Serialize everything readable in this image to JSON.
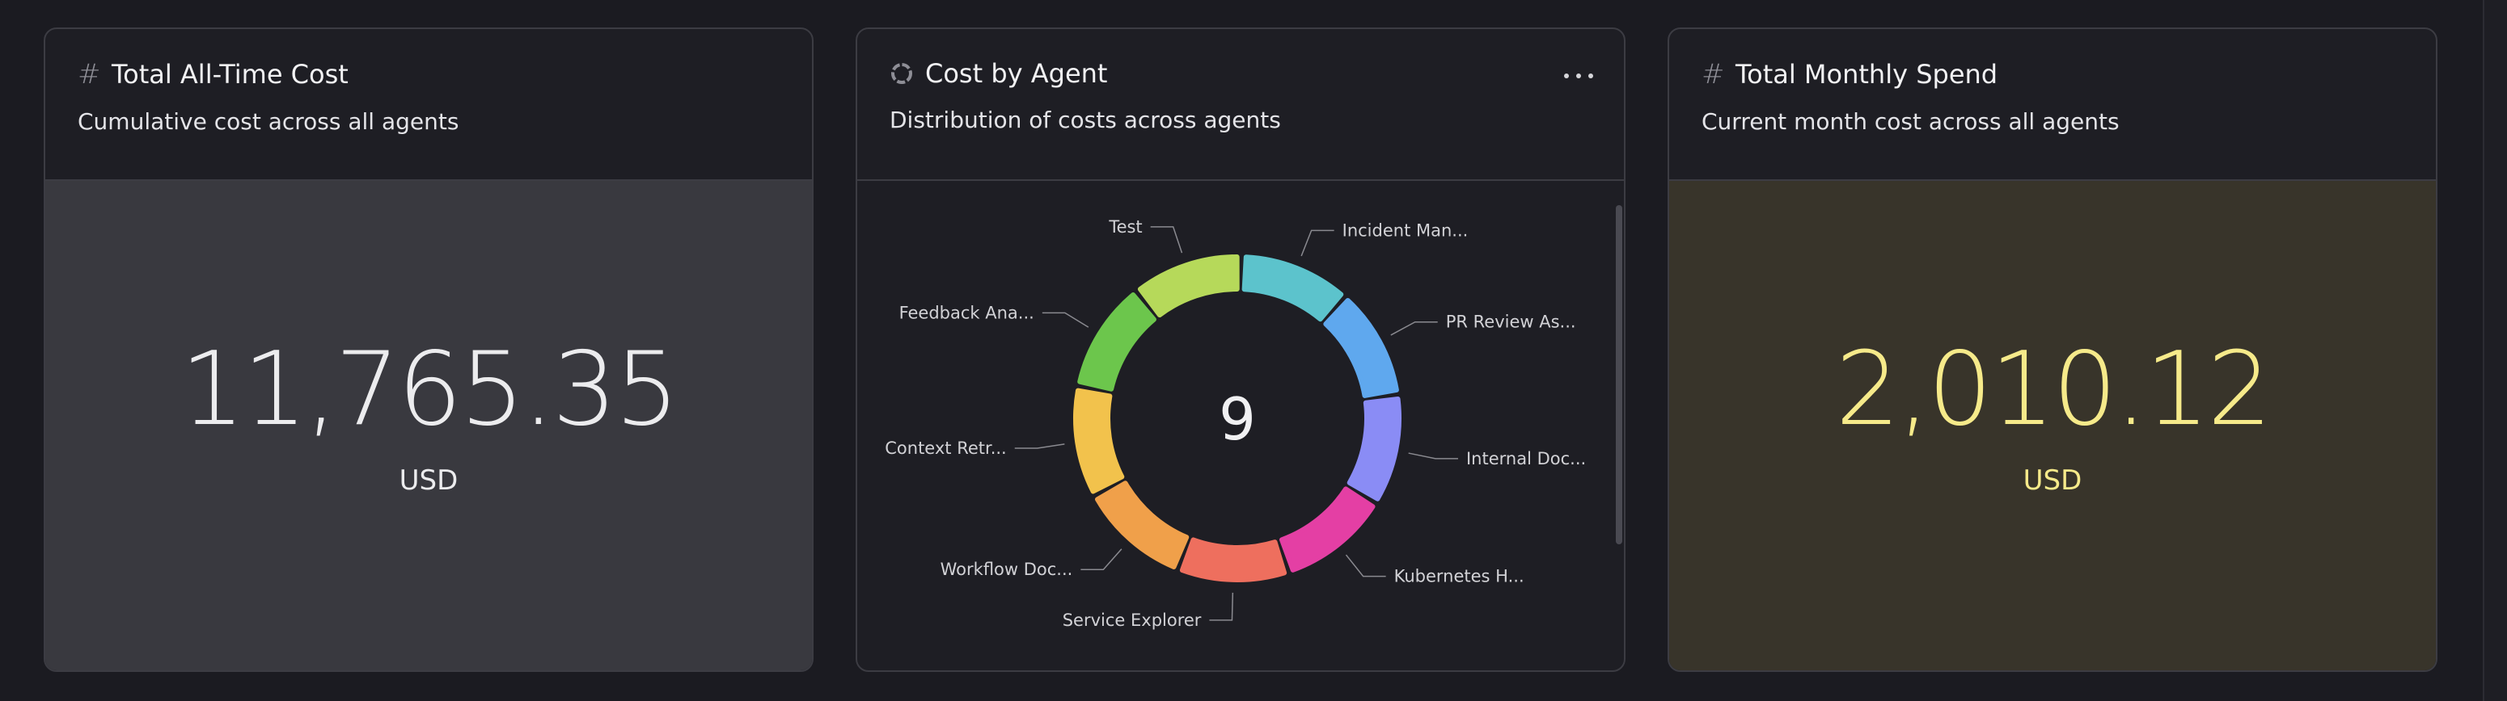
{
  "cards": {
    "total_all_time": {
      "title": "Total All-Time Cost",
      "subtitle": "Cumulative cost across all agents",
      "value": "11,765.35",
      "unit": "USD"
    },
    "cost_by_agent": {
      "title": "Cost by Agent",
      "subtitle": "Distribution of costs across agents",
      "center_value": "9",
      "segments": [
        {
          "label": "Incident Man...",
          "color": "#5cc3cc"
        },
        {
          "label": "PR Review As...",
          "color": "#5fa8ee"
        },
        {
          "label": "Internal Doc...",
          "color": "#8a8cf5"
        },
        {
          "label": "Kubernetes H...",
          "color": "#e43fa4"
        },
        {
          "label": "Service Explorer",
          "color": "#ee6f5e"
        },
        {
          "label": "Workflow Doc...",
          "color": "#f0a04a"
        },
        {
          "label": "Context Retr...",
          "color": "#f2c24c"
        },
        {
          "label": "Feedback Ana...",
          "color": "#6cc64c"
        },
        {
          "label": "Test",
          "color": "#b6d95a"
        }
      ]
    },
    "total_monthly": {
      "title": "Total Monthly Spend",
      "subtitle": "Current month cost across all agents",
      "value": "2,010.12",
      "unit": "USD"
    }
  },
  "colors": {
    "page_bg": "#1b1b21",
    "card_bg": "#1e1e24",
    "neutral_body": "#39393f",
    "highlight_body": "#38342a",
    "highlight_text": "#f6ea8a",
    "text": "#e8e8ea"
  }
}
